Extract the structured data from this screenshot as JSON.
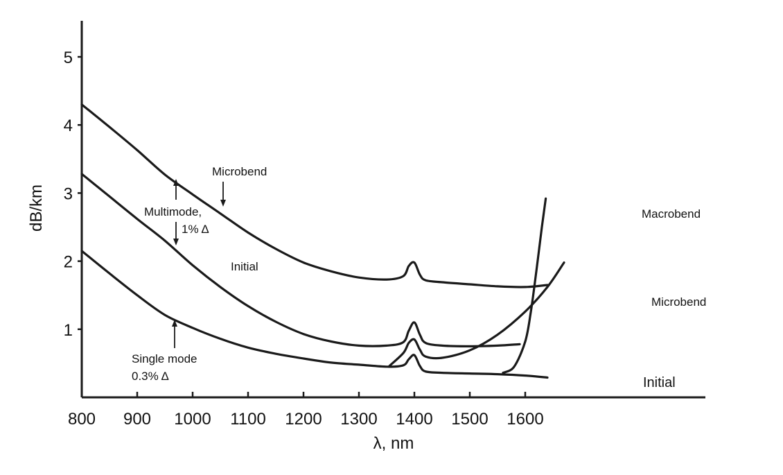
{
  "chart_data": {
    "type": "line",
    "xlabel": "λ, nm",
    "ylabel": "dB/km",
    "xlim": [
      800,
      1700
    ],
    "ylim": [
      0,
      5.6
    ],
    "x_ticks": [
      800,
      900,
      1000,
      1100,
      1200,
      1300,
      1400,
      1500,
      1600
    ],
    "y_ticks": [
      1,
      2,
      3,
      4,
      5
    ],
    "grid": false,
    "series": [
      {
        "group": "Multimode, 1% Δ",
        "label": "Microbend",
        "x": [
          800,
          850,
          900,
          950,
          1000,
          1050,
          1100,
          1150,
          1200,
          1250,
          1300,
          1350,
          1380,
          1390,
          1400,
          1410,
          1420,
          1450,
          1500,
          1550,
          1600,
          1640
        ],
        "y": [
          4.3,
          3.97,
          3.63,
          3.27,
          2.98,
          2.7,
          2.42,
          2.18,
          1.98,
          1.85,
          1.76,
          1.73,
          1.78,
          1.93,
          1.98,
          1.8,
          1.72,
          1.69,
          1.66,
          1.63,
          1.62,
          1.65
        ]
      },
      {
        "group": "Multimode, 1% Δ",
        "label": "Initial",
        "x": [
          800,
          850,
          900,
          950,
          1000,
          1050,
          1100,
          1150,
          1200,
          1250,
          1300,
          1350,
          1380,
          1390,
          1400,
          1410,
          1420,
          1450,
          1500,
          1550,
          1590
        ],
        "y": [
          3.28,
          2.95,
          2.62,
          2.3,
          1.94,
          1.62,
          1.34,
          1.11,
          0.93,
          0.82,
          0.76,
          0.76,
          0.81,
          0.98,
          1.1,
          0.92,
          0.8,
          0.76,
          0.75,
          0.76,
          0.78
        ]
      },
      {
        "group": "Single mode 0.3% Δ",
        "label": "Initial",
        "x": [
          800,
          850,
          900,
          950,
          1000,
          1050,
          1100,
          1150,
          1200,
          1250,
          1300,
          1350,
          1380,
          1390,
          1400,
          1410,
          1420,
          1450,
          1500,
          1550,
          1600,
          1640
        ],
        "y": [
          2.15,
          1.82,
          1.5,
          1.21,
          1.02,
          0.86,
          0.73,
          0.64,
          0.57,
          0.51,
          0.48,
          0.45,
          0.47,
          0.56,
          0.62,
          0.46,
          0.38,
          0.36,
          0.35,
          0.34,
          0.32,
          0.29
        ]
      },
      {
        "group": "Single mode 0.3% Δ",
        "label": "Microbend",
        "x": [
          1355,
          1380,
          1390,
          1400,
          1410,
          1420,
          1450,
          1500,
          1550,
          1600,
          1640,
          1670
        ],
        "y": [
          0.46,
          0.65,
          0.8,
          0.85,
          0.7,
          0.6,
          0.58,
          0.69,
          0.92,
          1.26,
          1.62,
          1.98
        ]
      },
      {
        "group": "Single mode 0.3% Δ",
        "label": "Macrobend",
        "x": [
          1560,
          1580,
          1600,
          1610,
          1620,
          1630,
          1637
        ],
        "y": [
          0.36,
          0.45,
          0.82,
          1.25,
          1.85,
          2.5,
          2.92
        ]
      }
    ],
    "annotations": [
      "Microbend",
      "Multimode,",
      "1% Δ",
      "Initial",
      "Single mode",
      "0.3% Δ",
      "Macrobend",
      "Microbend",
      "Initial"
    ]
  }
}
